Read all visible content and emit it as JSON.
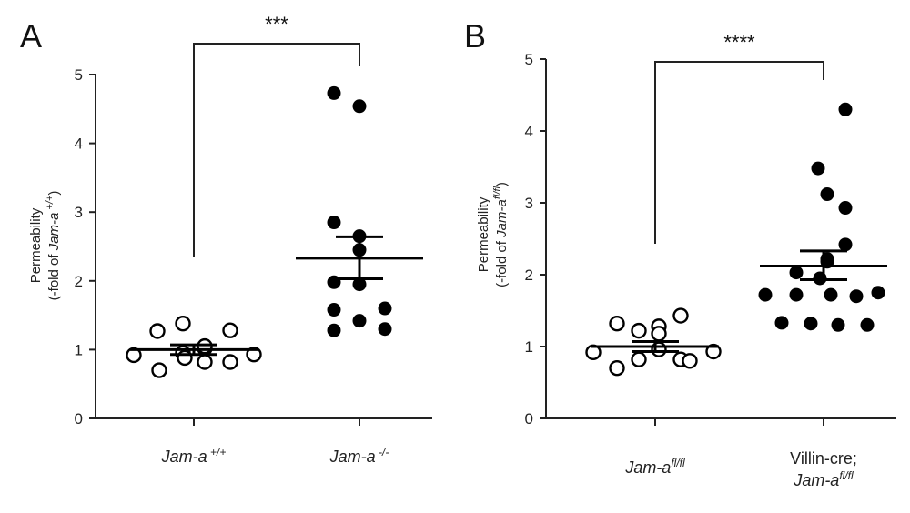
{
  "chart_data": [
    {
      "panel": "A",
      "type": "scatter",
      "ylabel_line1": "Permeability",
      "ylabel_line2": {
        "pre": "(-fold of ",
        "italic": "Jam-a",
        "sup": " +/+",
        "post": ")"
      },
      "ylim": [
        0,
        5
      ],
      "yticks": [
        0,
        1,
        2,
        3,
        4,
        5
      ],
      "significance": "***",
      "groups": [
        {
          "name": "Jam-a +/+",
          "label_italic": "Jam-a",
          "label_sup": " +/+",
          "label_plain": "",
          "label_line2_italic": "",
          "label_line2_sup": "",
          "fill": "open",
          "values": [
            0.92,
            1.27,
            0.7,
            1.38,
            0.95,
            0.88,
            1.02,
            0.82,
            1.05,
            1.28,
            0.82,
            0.93
          ],
          "mean": 1.0,
          "sem_low": 0.93,
          "sem_high": 1.07
        },
        {
          "name": "Jam-a -/-",
          "label_italic": "Jam-a",
          "label_sup": " -/-",
          "label_plain": "",
          "label_line2_italic": "",
          "label_line2_sup": "",
          "fill": "filled",
          "values": [
            4.73,
            4.54,
            2.85,
            2.65,
            2.45,
            1.98,
            1.95,
            1.6,
            1.58,
            1.42,
            1.3,
            1.28
          ],
          "mean": 2.33,
          "sem_low": 2.03,
          "sem_high": 2.64
        }
      ]
    },
    {
      "panel": "B",
      "type": "scatter",
      "ylabel_line1": "Permeability",
      "ylabel_line2": {
        "pre": "(-fold of ",
        "italic": "Jam-a",
        "sup": "fl/fl",
        "post": ")"
      },
      "ylim": [
        0,
        5
      ],
      "yticks": [
        0,
        1,
        2,
        3,
        4,
        5
      ],
      "significance": "****",
      "groups": [
        {
          "name": "Jam-a fl/fl",
          "label_italic": "Jam-a",
          "label_sup": "fl/fl",
          "label_plain": "",
          "label_line2_italic": "",
          "label_line2_sup": "",
          "fill": "open",
          "values": [
            0.92,
            1.32,
            0.7,
            1.22,
            0.82,
            1.28,
            0.96,
            1.18,
            0.82,
            1.43,
            0.8,
            0.93
          ],
          "mean": 1.0,
          "sem_low": 0.93,
          "sem_high": 1.07
        },
        {
          "name": "Villin-cre; Jam-a fl/fl",
          "label_italic": "",
          "label_sup": "",
          "label_plain": "Villin-cre;",
          "label_line2_italic": "Jam-a",
          "label_line2_sup": "fl/fl",
          "fill": "filled",
          "values": [
            4.3,
            3.48,
            3.12,
            2.93,
            2.42,
            2.22,
            2.18,
            2.03,
            1.95,
            1.75,
            1.72,
            1.72,
            1.72,
            1.7,
            1.33,
            1.32,
            1.3,
            1.3
          ],
          "mean": 2.12,
          "sem_low": 1.93,
          "sem_high": 2.33
        }
      ]
    }
  ]
}
